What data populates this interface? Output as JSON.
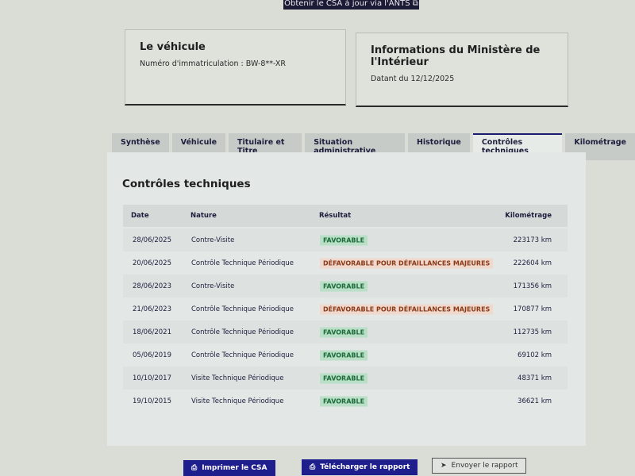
{
  "top_button": {
    "label": "Obtenir le CSA à jour via l'ANTS"
  },
  "vehicle_card": {
    "title": "Le véhicule",
    "registration": "Numéro d'immatriculation : BW-8**-XR"
  },
  "ministry_card": {
    "title": "Informations du Ministère de l'Intérieur",
    "date": "Datant du 12/12/2025"
  },
  "tabs": [
    {
      "label": "Synthèse"
    },
    {
      "label": "Véhicule"
    },
    {
      "label": "Titulaire et Titre"
    },
    {
      "label": "Situation administrative"
    },
    {
      "label": "Historique"
    },
    {
      "label": "Contrôles techniques",
      "active": true
    },
    {
      "label": "Kilométrage"
    }
  ],
  "section": {
    "title": "Contrôles techniques"
  },
  "table": {
    "headers": {
      "date": "Date",
      "nature": "Nature",
      "result": "Résultat",
      "km": "Kilométrage"
    },
    "rows": [
      {
        "date": "28/06/2025",
        "nature": "Contre-Visite",
        "result": "FAVORABLE",
        "status": "fav",
        "km": "223173 km"
      },
      {
        "date": "20/06/2025",
        "nature": "Contrôle Technique Périodique",
        "result": "DÉFAVORABLE POUR DÉFAILLANCES MAJEURES",
        "status": "defav",
        "km": "222604 km"
      },
      {
        "date": "28/06/2023",
        "nature": "Contre-Visite",
        "result": "FAVORABLE",
        "status": "fav",
        "km": "171356 km"
      },
      {
        "date": "21/06/2023",
        "nature": "Contrôle Technique Périodique",
        "result": "DÉFAVORABLE POUR DÉFAILLANCES MAJEURES",
        "status": "defav",
        "km": "170877 km"
      },
      {
        "date": "18/06/2021",
        "nature": "Contrôle Technique Périodique",
        "result": "FAVORABLE",
        "status": "fav",
        "km": "112735 km"
      },
      {
        "date": "05/06/2019",
        "nature": "Contrôle Technique Périodique",
        "result": "FAVORABLE",
        "status": "fav",
        "km": "69102 km"
      },
      {
        "date": "10/10/2017",
        "nature": "Visite Technique Périodique",
        "result": "FAVORABLE",
        "status": "fav",
        "km": "48371 km"
      },
      {
        "date": "19/10/2015",
        "nature": "Visite Technique Périodique",
        "result": "FAVORABLE",
        "status": "fav",
        "km": "36621 km"
      }
    ]
  },
  "actions": {
    "print": "Imprimer le CSA",
    "download": "Télécharger le rapport",
    "send": "Envoyer le rapport"
  },
  "colors": {
    "primary": "#1e1e8c",
    "favorable": "#1c6b3a",
    "defavorable": "#8a3a18"
  }
}
